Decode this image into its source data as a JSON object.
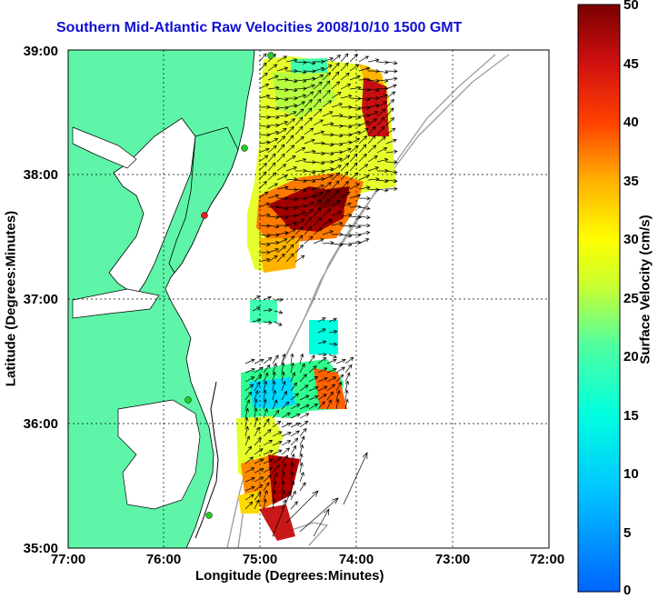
{
  "title": "Southern Mid-Atlantic Raw Velocities 2008/10/10 1500 GMT",
  "axes": {
    "xlabel": "Longitude (Degrees:Minutes)",
    "ylabel": "Latitude (Degrees:Minutes)",
    "x_ticks": [
      "77:00",
      "76:00",
      "75:00",
      "74:00",
      "73:00",
      "72:00"
    ],
    "y_ticks": [
      "39:00",
      "38:00",
      "37:00",
      "36:00",
      "35:00"
    ],
    "grid": "dotted"
  },
  "colorbar": {
    "label": "Surface Velocity (cm/s)",
    "ticks": [
      "50",
      "45",
      "40",
      "35",
      "30",
      "25",
      "20",
      "15",
      "10",
      "5",
      "0"
    ],
    "range": [
      0,
      50
    ]
  },
  "colors": {
    "land": "#5ef5a8",
    "coastline": "#000000",
    "isobath": "#a0a0a0",
    "title": "#1010d0",
    "station_green": "#22cc22",
    "station_red": "#e02020"
  }
}
